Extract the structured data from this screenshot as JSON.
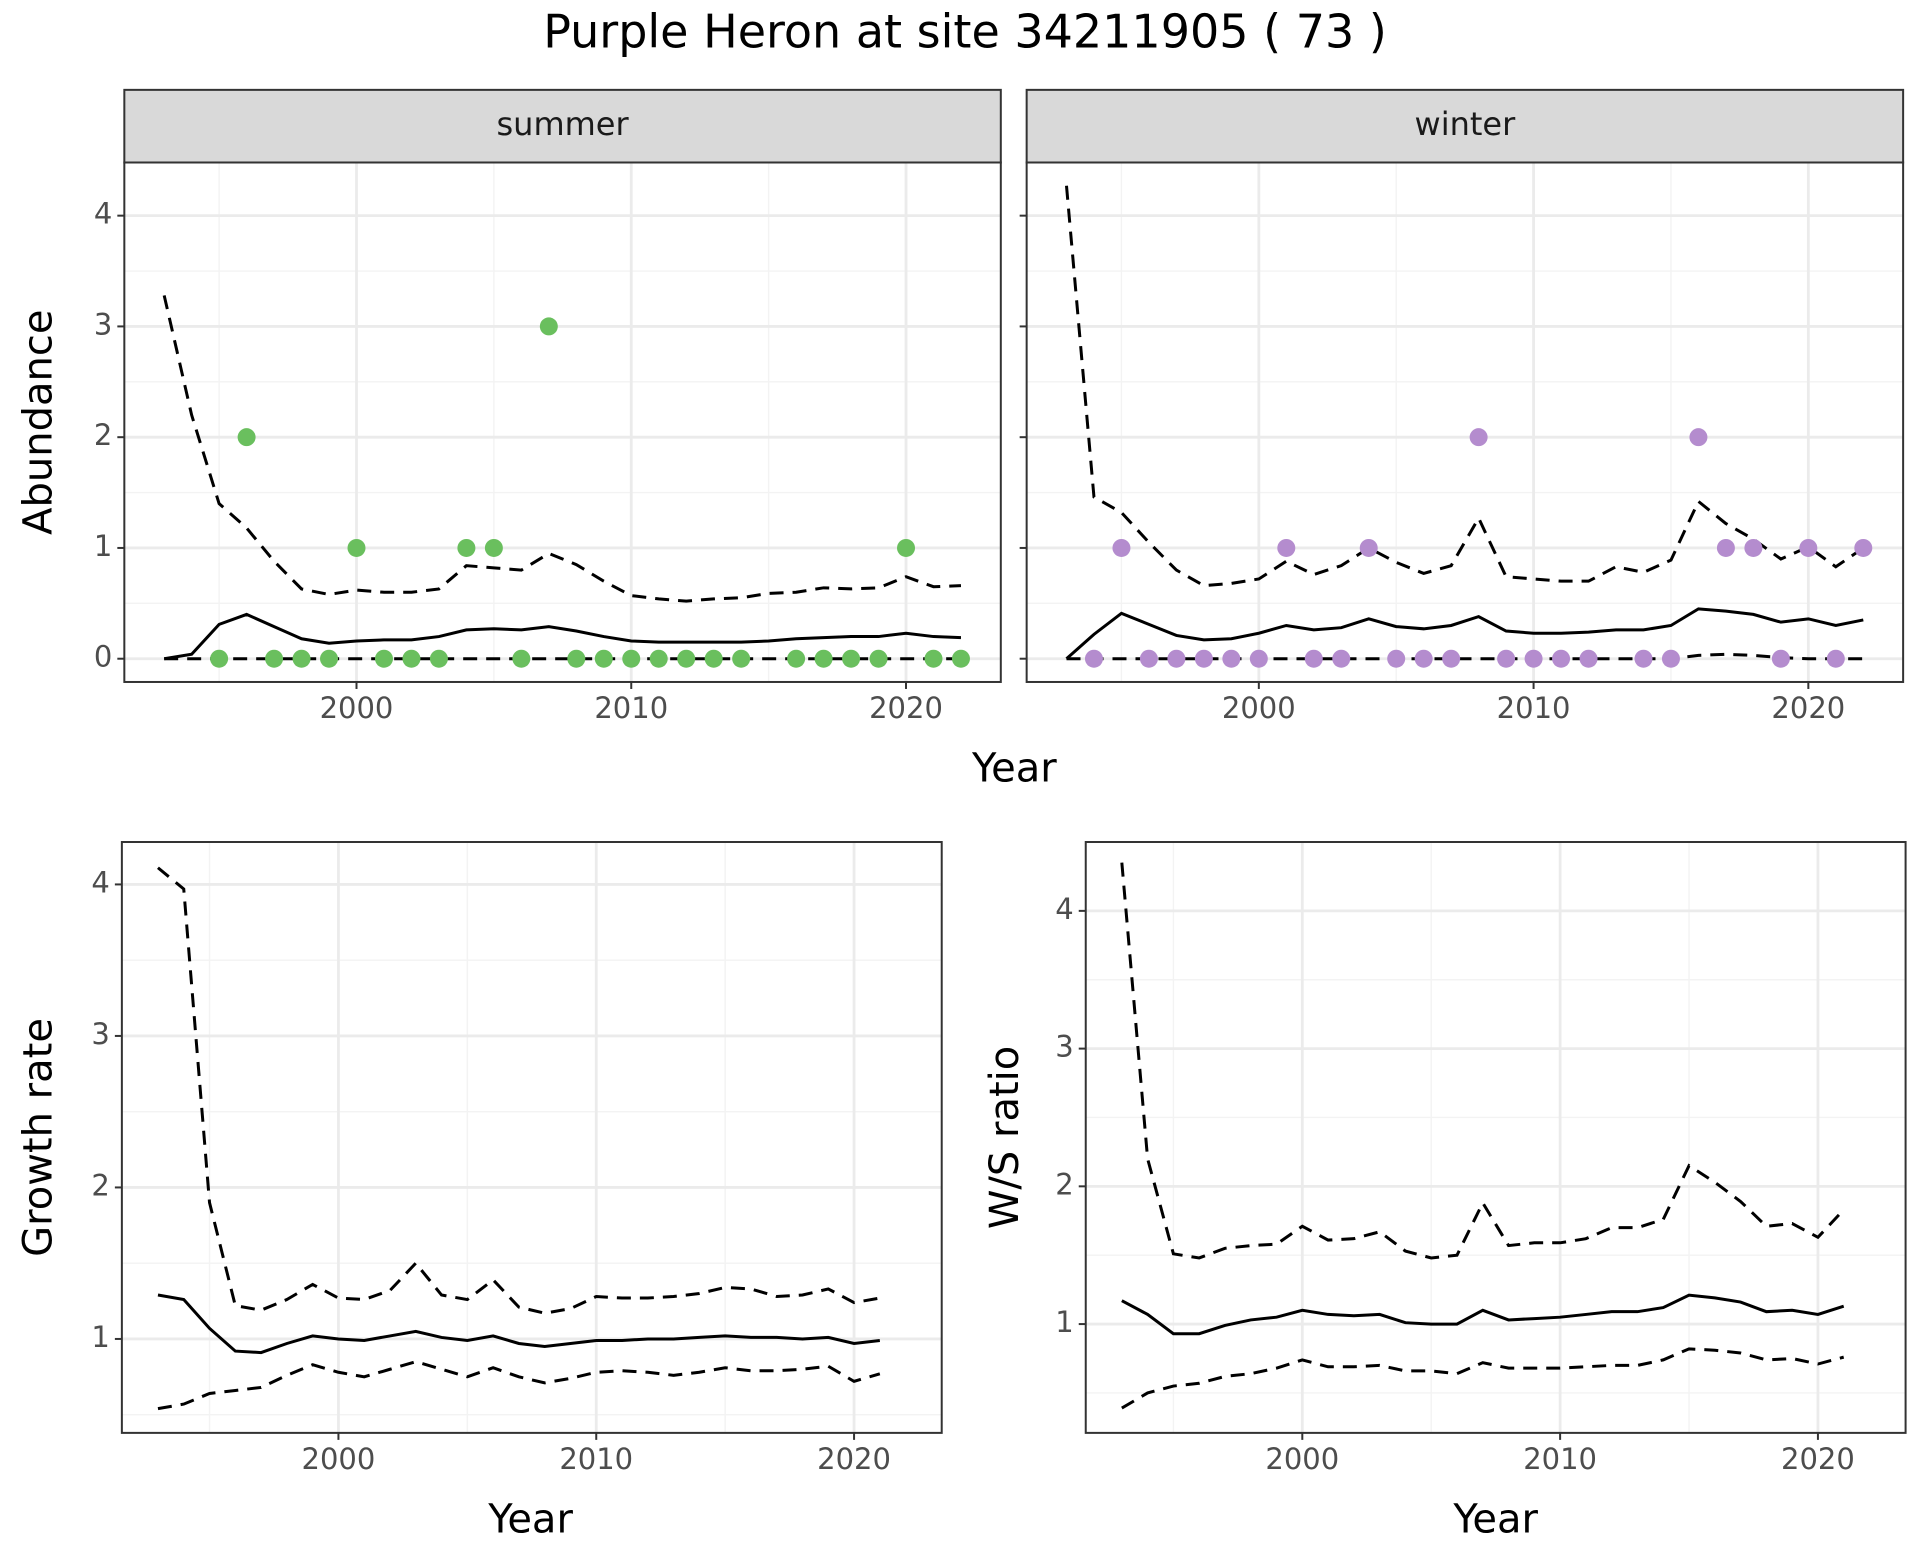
{
  "title": "Purple Heron at site 34211905 ( 73 )",
  "chart_data": [
    {
      "type": "line",
      "facet": "summer",
      "ylabel": "Abundance",
      "xlabel": "Year",
      "x": [
        1993,
        1994,
        1995,
        1996,
        1997,
        1998,
        1999,
        2000,
        2001,
        2002,
        2003,
        2004,
        2005,
        2006,
        2007,
        2008,
        2009,
        2010,
        2011,
        2012,
        2013,
        2014,
        2015,
        2016,
        2017,
        2018,
        2019,
        2020,
        2021,
        2022
      ],
      "xlim": [
        1991.55,
        2023.45
      ],
      "xticks": [
        2000,
        2010,
        2020
      ],
      "xminorticks": [
        1995,
        2005,
        2015
      ],
      "ylim": [
        -0.21,
        4.48
      ],
      "yticks": [
        0,
        1,
        2,
        3,
        4
      ],
      "yminorticks": [
        0.5,
        1.5,
        2.5,
        3.5
      ],
      "series": [
        {
          "color": "#000000",
          "style": "solid",
          "values": [
            0,
            0.04,
            0.31,
            0.4,
            0.29,
            0.18,
            0.14,
            0.16,
            0.17,
            0.17,
            0.2,
            0.26,
            0.27,
            0.26,
            0.29,
            0.25,
            0.2,
            0.16,
            0.15,
            0.15,
            0.15,
            0.15,
            0.16,
            0.18,
            0.19,
            0.2,
            0.2,
            0.23,
            0.2,
            0.19
          ]
        },
        {
          "color": "#000000",
          "style": "dashed",
          "values": [
            3.28,
            2.2,
            1.4,
            1.18,
            0.88,
            0.63,
            0.58,
            0.62,
            0.6,
            0.6,
            0.63,
            0.84,
            0.82,
            0.8,
            0.95,
            0.85,
            0.7,
            0.57,
            0.54,
            0.52,
            0.54,
            0.55,
            0.59,
            0.6,
            0.64,
            0.63,
            0.64,
            0.74,
            0.65,
            0.66
          ]
        },
        {
          "color": "#000000",
          "style": "dashed",
          "values": [
            0,
            0,
            0,
            0,
            0,
            0,
            0,
            0,
            0,
            0,
            0,
            0,
            0,
            0,
            0,
            0,
            0,
            0,
            0,
            0,
            0,
            0,
            0,
            0,
            0,
            0,
            0,
            0,
            0,
            0
          ]
        }
      ],
      "points": {
        "color": "#6abf5e",
        "values": [
          null,
          null,
          0,
          2,
          0,
          0,
          0,
          1,
          0,
          0,
          0,
          1,
          1,
          0,
          3,
          0,
          0,
          0,
          0,
          0,
          0,
          0,
          null,
          0,
          0,
          0,
          0,
          1,
          0,
          0
        ]
      }
    },
    {
      "type": "line",
      "facet": "winter",
      "x": [
        1993,
        1994,
        1995,
        1996,
        1997,
        1998,
        1999,
        2000,
        2001,
        2002,
        2003,
        2004,
        2005,
        2006,
        2007,
        2008,
        2009,
        2010,
        2011,
        2012,
        2013,
        2014,
        2015,
        2016,
        2017,
        2018,
        2019,
        2020,
        2021,
        2022
      ],
      "xlim": [
        1991.55,
        2023.45
      ],
      "xticks": [
        2000,
        2010,
        2020
      ],
      "xminorticks": [
        1995,
        2005,
        2015
      ],
      "ylim": [
        -0.21,
        4.48
      ],
      "yticks": [
        0,
        1,
        2,
        3,
        4
      ],
      "yminorticks": [
        0.5,
        1.5,
        2.5,
        3.5
      ],
      "series": [
        {
          "color": "#000000",
          "style": "solid",
          "values": [
            0,
            0.22,
            0.41,
            0.31,
            0.21,
            0.17,
            0.18,
            0.23,
            0.3,
            0.26,
            0.28,
            0.36,
            0.29,
            0.27,
            0.3,
            0.38,
            0.25,
            0.23,
            0.23,
            0.24,
            0.26,
            0.26,
            0.3,
            0.45,
            0.43,
            0.4,
            0.33,
            0.36,
            0.3,
            0.35
          ]
        },
        {
          "color": "#000000",
          "style": "dashed",
          "values": [
            4.27,
            1.46,
            1.32,
            1.05,
            0.8,
            0.66,
            0.68,
            0.72,
            0.88,
            0.76,
            0.84,
            1.0,
            0.87,
            0.77,
            0.84,
            1.27,
            0.74,
            0.72,
            0.7,
            0.7,
            0.83,
            0.78,
            0.89,
            1.42,
            1.22,
            1.08,
            0.9,
            1.01,
            0.83,
            1.0
          ]
        },
        {
          "color": "#000000",
          "style": "dashed",
          "values": [
            0,
            0,
            0,
            0,
            0,
            0,
            0,
            0,
            0,
            0,
            0,
            0,
            0,
            0,
            0,
            0,
            0,
            0,
            0,
            0,
            0,
            0,
            0,
            0.03,
            0.04,
            0.03,
            0.01,
            0,
            0,
            0
          ]
        }
      ],
      "points": {
        "color": "#b48cce",
        "values": [
          null,
          0,
          1,
          0,
          0,
          0,
          0,
          0,
          1,
          0,
          0,
          1,
          0,
          0,
          0,
          2,
          0,
          0,
          0,
          0,
          null,
          0,
          0,
          2,
          1,
          1,
          0,
          1,
          0,
          1
        ]
      }
    },
    {
      "type": "line",
      "ylabel": "Growth rate",
      "xlabel": "Year",
      "x": [
        1993,
        1994,
        1995,
        1996,
        1997,
        1998,
        1999,
        2000,
        2001,
        2002,
        2003,
        2004,
        2005,
        2006,
        2007,
        2008,
        2009,
        2010,
        2011,
        2012,
        2013,
        2014,
        2015,
        2016,
        2017,
        2018,
        2019,
        2020,
        2021
      ],
      "xlim": [
        1991.6,
        2023.4
      ],
      "xticks": [
        2000,
        2010,
        2020
      ],
      "xminorticks": [
        1995,
        2005,
        2015
      ],
      "ylim": [
        0.38,
        4.28
      ],
      "yticks": [
        1,
        2,
        3,
        4
      ],
      "yminorticks": [
        0.5,
        1.5,
        2.5,
        3.5
      ],
      "series": [
        {
          "color": "#000000",
          "style": "solid",
          "values": [
            1.29,
            1.26,
            1.07,
            0.92,
            0.91,
            0.97,
            1.02,
            1.0,
            0.99,
            1.02,
            1.05,
            1.01,
            0.99,
            1.02,
            0.97,
            0.95,
            0.97,
            0.99,
            0.99,
            1.0,
            1.0,
            1.01,
            1.02,
            1.01,
            1.01,
            1.0,
            1.01,
            0.97,
            0.99
          ]
        },
        {
          "color": "#000000",
          "style": "dashed",
          "values": [
            4.11,
            3.97,
            1.9,
            1.22,
            1.19,
            1.26,
            1.36,
            1.27,
            1.26,
            1.32,
            1.5,
            1.29,
            1.26,
            1.39,
            1.21,
            1.17,
            1.2,
            1.28,
            1.27,
            1.27,
            1.28,
            1.3,
            1.34,
            1.33,
            1.28,
            1.29,
            1.33,
            1.24,
            1.27
          ]
        },
        {
          "color": "#000000",
          "style": "dashed",
          "values": [
            0.54,
            0.57,
            0.64,
            0.66,
            0.68,
            0.76,
            0.83,
            0.78,
            0.75,
            0.8,
            0.85,
            0.8,
            0.75,
            0.81,
            0.75,
            0.71,
            0.74,
            0.78,
            0.79,
            0.78,
            0.76,
            0.78,
            0.81,
            0.79,
            0.79,
            0.8,
            0.82,
            0.72,
            0.77
          ]
        }
      ]
    },
    {
      "type": "line",
      "ylabel": "W/S ratio",
      "xlabel": "Year",
      "x": [
        1993,
        1994,
        1995,
        1996,
        1997,
        1998,
        1999,
        2000,
        2001,
        2002,
        2003,
        2004,
        2005,
        2006,
        2007,
        2008,
        2009,
        2010,
        2011,
        2012,
        2013,
        2014,
        2015,
        2016,
        2017,
        2018,
        2019,
        2020,
        2021
      ],
      "xlim": [
        1991.6,
        2023.4
      ],
      "xticks": [
        2000,
        2010,
        2020
      ],
      "xminorticks": [
        1995,
        2005,
        2015
      ],
      "ylim": [
        0.21,
        4.5
      ],
      "yticks": [
        1,
        2,
        3,
        4
      ],
      "yminorticks": [
        0.5,
        1.5,
        2.5,
        3.5
      ],
      "series": [
        {
          "color": "#000000",
          "style": "solid",
          "values": [
            1.17,
            1.07,
            0.93,
            0.93,
            0.99,
            1.03,
            1.05,
            1.1,
            1.07,
            1.06,
            1.07,
            1.01,
            1.0,
            1.0,
            1.1,
            1.03,
            1.04,
            1.05,
            1.07,
            1.09,
            1.09,
            1.12,
            1.21,
            1.19,
            1.16,
            1.09,
            1.1,
            1.07,
            1.13
          ]
        },
        {
          "color": "#000000",
          "style": "dashed",
          "values": [
            4.35,
            2.2,
            1.51,
            1.48,
            1.55,
            1.57,
            1.58,
            1.71,
            1.61,
            1.62,
            1.67,
            1.53,
            1.48,
            1.5,
            1.88,
            1.57,
            1.59,
            1.59,
            1.62,
            1.7,
            1.7,
            1.76,
            2.15,
            2.03,
            1.89,
            1.71,
            1.73,
            1.63,
            1.83
          ]
        },
        {
          "color": "#000000",
          "style": "dashed",
          "values": [
            0.39,
            0.5,
            0.55,
            0.57,
            0.62,
            0.64,
            0.68,
            0.74,
            0.69,
            0.69,
            0.7,
            0.66,
            0.66,
            0.64,
            0.72,
            0.68,
            0.68,
            0.68,
            0.69,
            0.7,
            0.7,
            0.74,
            0.82,
            0.81,
            0.79,
            0.74,
            0.75,
            0.71,
            0.76
          ]
        }
      ]
    }
  ]
}
